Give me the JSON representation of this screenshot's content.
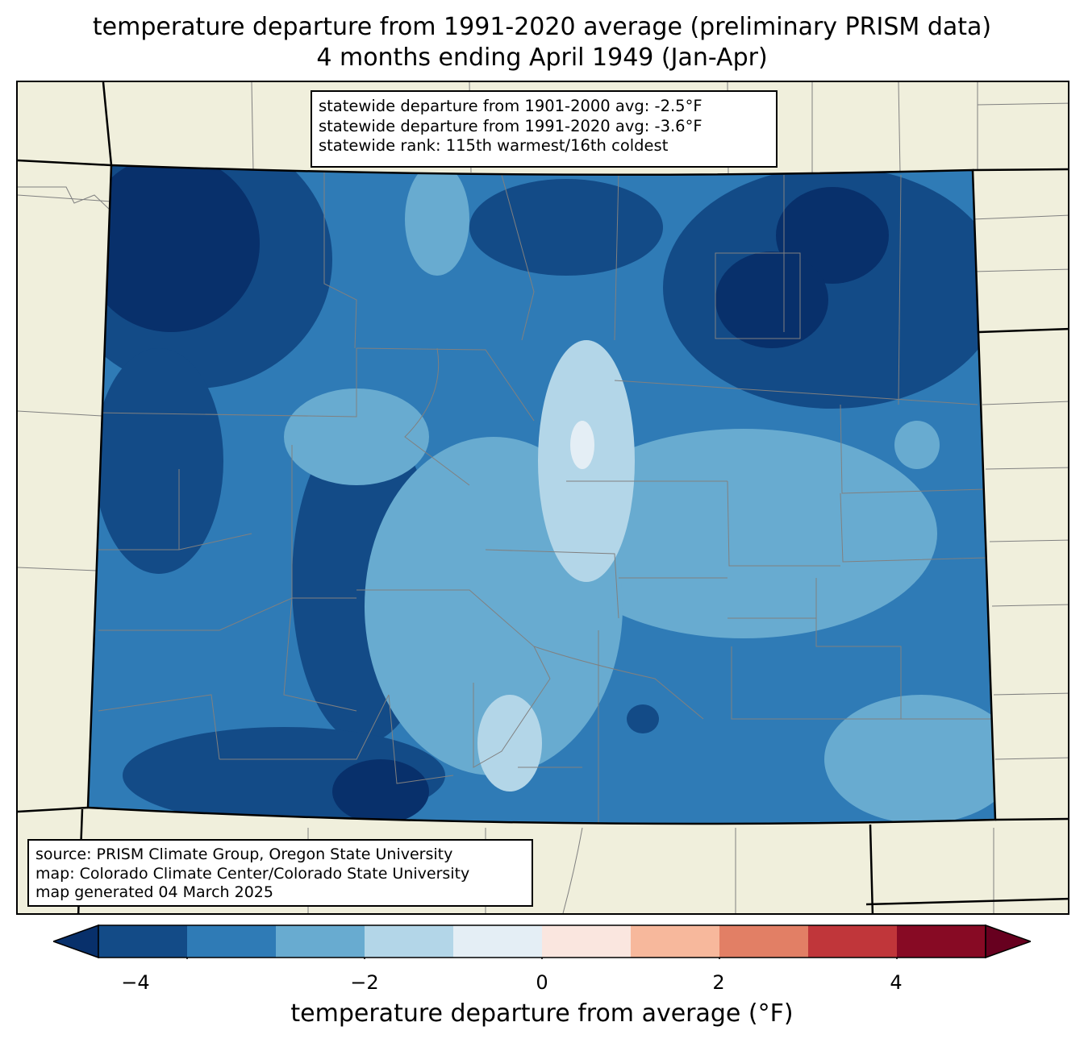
{
  "title": {
    "line1": "temperature departure from 1991-2020 average (preliminary PRISM data)",
    "line2": "4 months ending April 1949 (Jan-Apr)"
  },
  "stats": {
    "line1": "statewide departure from 1901-2000 avg: -2.5°F",
    "line2": "statewide departure from 1991-2020 avg: -3.6°F",
    "line3": "statewide rank: 115th warmest/16th coldest"
  },
  "source": {
    "line1": "source: PRISM Climate Group, Oregon State University",
    "line2": "map: Colorado Climate Center/Colorado State University",
    "line3": "map generated 04 March 2025"
  },
  "colorbar": {
    "label": "temperature departure from average (°F)",
    "ticks": [
      "−4",
      "−2",
      "0",
      "2",
      "4"
    ],
    "levels": [
      -5,
      -4,
      -3,
      -2,
      -1,
      0,
      1,
      2,
      3,
      4,
      5
    ],
    "colors": [
      "#08306b",
      "#134b87",
      "#2f7bb6",
      "#68abd0",
      "#b3d6e8",
      "#e4eef5",
      "#fae6df",
      "#f7b89c",
      "#e27f65",
      "#c0363a",
      "#870a24",
      "#67001f"
    ]
  },
  "map": {
    "land_color": "#f0efdc",
    "county_line_color": "#808080"
  }
}
